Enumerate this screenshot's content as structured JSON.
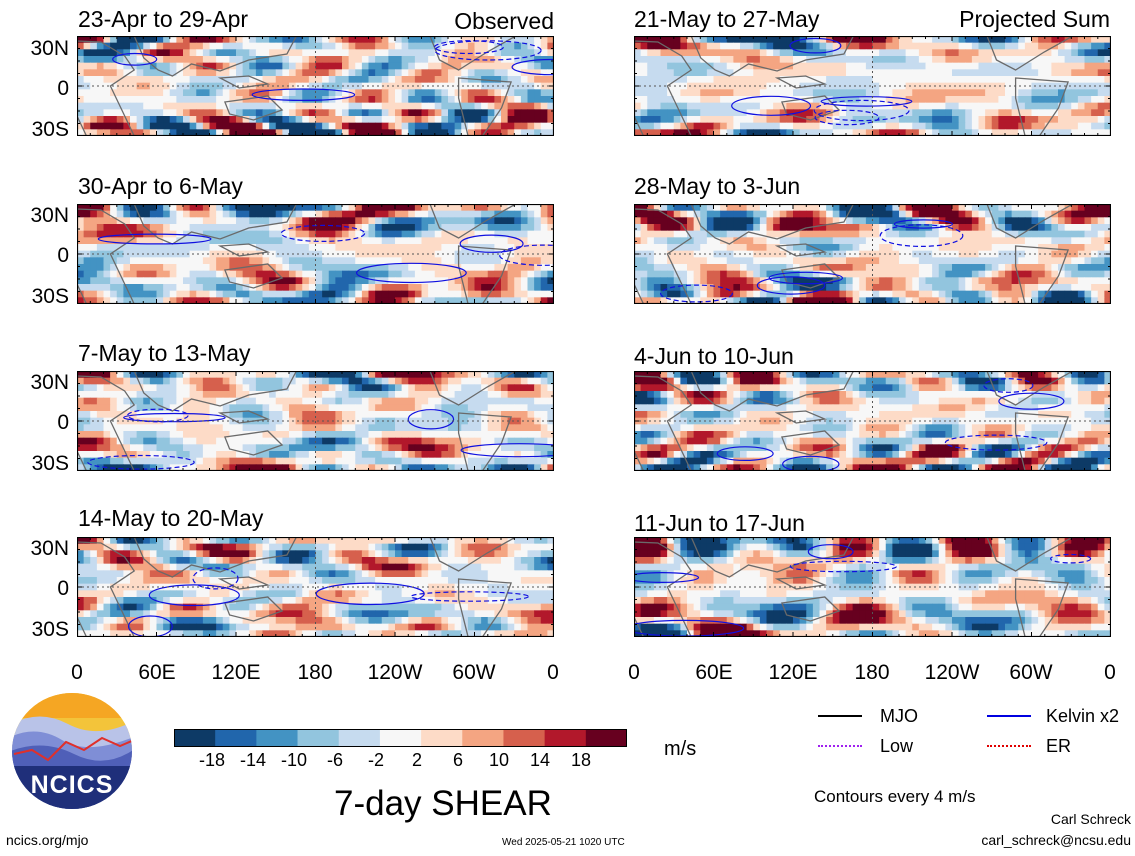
{
  "chart_data": {
    "type": "heatmap",
    "title": "7-day SHEAR",
    "units": "m/s",
    "y_ticks": [
      "30N",
      "0",
      "30S"
    ],
    "x_ticks": [
      "0",
      "60E",
      "120E",
      "180",
      "120W",
      "60W",
      "0"
    ],
    "panel_labels": {
      "left": "Observed",
      "right": "Projected Sum"
    },
    "panels": [
      {
        "id": "p1",
        "title": "23-Apr to 29-Apr",
        "group": "observed"
      },
      {
        "id": "p2",
        "title": "30-Apr to 6-May",
        "group": "observed"
      },
      {
        "id": "p3",
        "title": "7-May to 13-May",
        "group": "observed"
      },
      {
        "id": "p4",
        "title": "14-May to 20-May",
        "group": "observed"
      },
      {
        "id": "p5",
        "title": "21-May to 27-May",
        "group": "projected"
      },
      {
        "id": "p6",
        "title": "28-May to 3-Jun",
        "group": "projected"
      },
      {
        "id": "p7",
        "title": "4-Jun to 10-Jun",
        "group": "projected"
      },
      {
        "id": "p8",
        "title": "11-Jun to 17-Jun",
        "group": "projected"
      }
    ],
    "colorbar": {
      "ticks": [
        "-18",
        "-14",
        "-10",
        "-6",
        "-2",
        "2",
        "6",
        "10",
        "14",
        "18"
      ],
      "colors": [
        "#0d3a66",
        "#2166ac",
        "#4393c3",
        "#92c5de",
        "#c6dbef",
        "#f7f7f7",
        "#fddbc7",
        "#f4a582",
        "#d6604d",
        "#b2182b",
        "#67001f"
      ]
    },
    "legend": [
      {
        "label": "MJO",
        "color": "#000000",
        "style": "solid"
      },
      {
        "label": "Kelvin x2",
        "color": "#0000e0",
        "style": "solid"
      },
      {
        "label": "Low",
        "color": "#a020f0",
        "style": "dotted"
      },
      {
        "label": "ER",
        "color": "#e00000",
        "style": "dotted"
      }
    ],
    "contour_note": "Contours every 4 m/s"
  },
  "footer": {
    "url": "ncics.org/mjo",
    "timestamp": "Wed 2025-05-21 1020 UTC",
    "author": "Carl Schreck",
    "email": "carl_schreck@ncsu.edu",
    "logo_text": "NCICS"
  }
}
